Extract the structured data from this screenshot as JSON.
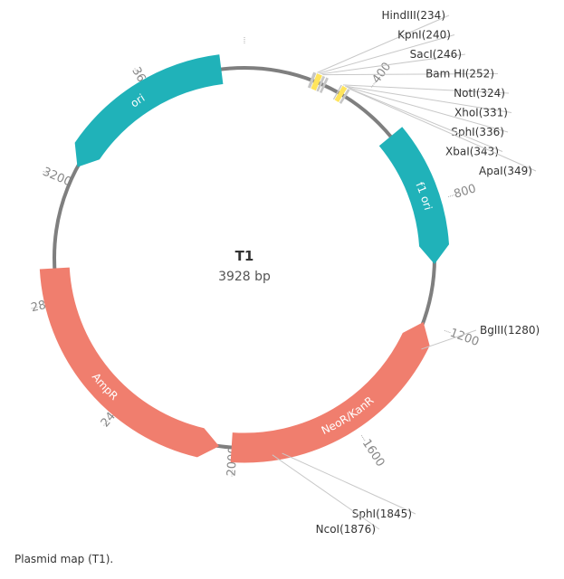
{
  "plasmid": {
    "name": "T1",
    "size_bp": 3928,
    "size_label": "3928 bp"
  },
  "caption": "Plasmid map (T1).",
  "colors": {
    "backbone": "#7f7f7f",
    "teal": "#20b2b9",
    "salmon": "#f07e6e",
    "site_line": "#c8c8c8",
    "mcs_box": "#c6c6c6",
    "mcs_highlight": "#ffe45c"
  },
  "features": [
    {
      "name": "ori",
      "start": 3260,
      "end": 3850,
      "strand": -1,
      "color": "teal"
    },
    {
      "name": "f1 ori",
      "start": 550,
      "end": 1000,
      "strand": 1,
      "color": "teal"
    },
    {
      "name": "NeoR/KanR",
      "start": 1200,
      "end": 2005,
      "strand": -1,
      "color": "salmon"
    },
    {
      "name": "AmpR",
      "start": 2050,
      "end": 2910,
      "strand": -1,
      "color": "salmon"
    }
  ],
  "sites": [
    {
      "label": "HindIII(234)",
      "position": 234
    },
    {
      "label": "KpnI(240)",
      "position": 240
    },
    {
      "label": "SacI(246)",
      "position": 246
    },
    {
      "label": "Bam HI(252)",
      "position": 252
    },
    {
      "label": "NotI(324)",
      "position": 324
    },
    {
      "label": "XhoI(331)",
      "position": 331
    },
    {
      "label": "SphI(336)",
      "position": 336
    },
    {
      "label": "XbaI(343)",
      "position": 343
    },
    {
      "label": "ApaI(349)",
      "position": 349
    },
    {
      "label": "BglII(1280)",
      "position": 1280
    },
    {
      "label": "SphI(1845)",
      "position": 1845
    },
    {
      "label": "NcoI(1876)",
      "position": 1876
    }
  ],
  "ticks": [
    {
      "label": "400",
      "position": 400
    },
    {
      "label": "800",
      "position": 800
    },
    {
      "label": "1200",
      "position": 1200
    },
    {
      "label": "1600",
      "position": 1600
    },
    {
      "label": "2000",
      "position": 2000
    },
    {
      "label": "2400",
      "position": 2400
    },
    {
      "label": "2800",
      "position": 2800
    },
    {
      "label": "3200",
      "position": 3200
    },
    {
      "label": "3600",
      "position": 3600
    }
  ]
}
